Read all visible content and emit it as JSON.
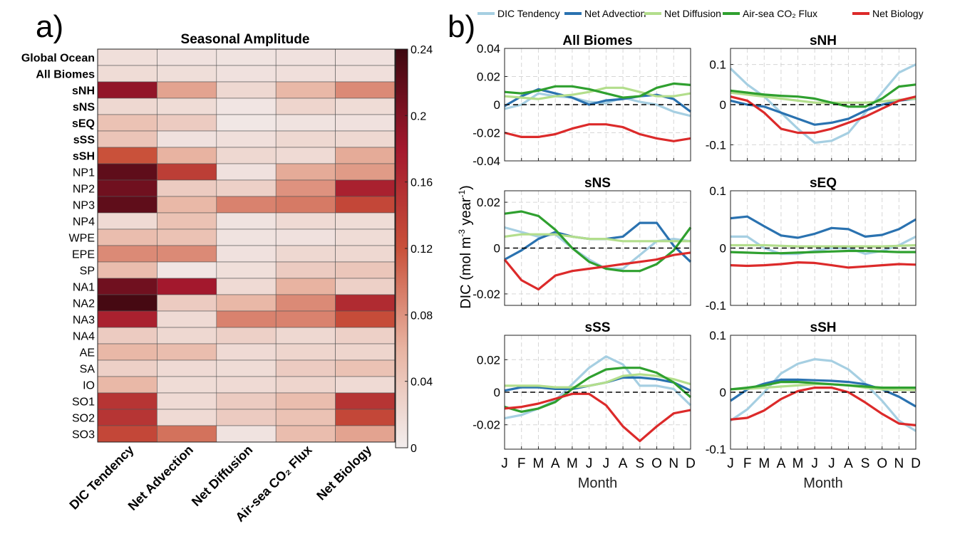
{
  "panel_labels": {
    "a": "a)",
    "b": "b)"
  },
  "heatmap": {
    "title": "Seasonal Amplitude",
    "colorbar_label": "DIC (mol m⁻³ year⁻¹)",
    "colorbar_ticks": [
      "0",
      "0.04",
      "0.08",
      "0.12",
      "0.16",
      "0.2",
      "0.24"
    ],
    "colorbar_range": [
      0,
      0.24
    ],
    "color_stops": [
      "#f2eded",
      "#e8b3a1",
      "#c9513a",
      "#a3182d",
      "#3d0810"
    ]
  },
  "line_panels": {
    "xlabel": "Month",
    "ylabel_left": "DIC (mol m",
    "ylabel_sup": "-3",
    "ylabel_mid": " year",
    "ylabel_sup2": "-1",
    "ylabel_end": ")",
    "legend": [
      {
        "name": "DIC Tendency",
        "color": "#a6cfe2"
      },
      {
        "name": "Net Advection",
        "color": "#2a72b0"
      },
      {
        "name": "Net Diffusion",
        "color": "#b3de8c"
      },
      {
        "name": "Air-sea CO₂ Flux",
        "color": "#2fa02f"
      },
      {
        "name": "Net Biology",
        "color": "#dc2a2a"
      }
    ]
  },
  "chart_data": [
    {
      "type": "heatmap",
      "title": "Seasonal Amplitude",
      "rows": [
        "Global Ocean",
        "All Biomes",
        "sNH",
        "sNS",
        "sEQ",
        "sSS",
        "sSH",
        "NP1",
        "NP2",
        "NP3",
        "NP4",
        "WPE",
        "EPE",
        "SP",
        "NA1",
        "NA2",
        "NA3",
        "NA4",
        "AE",
        "SA",
        "IO",
        "SO1",
        "SO2",
        "SO3"
      ],
      "bold_rows": [
        "Global Ocean",
        "All Biomes",
        "sNH",
        "sNS",
        "sEQ",
        "sSS",
        "sSH"
      ],
      "columns": [
        "DIC Tendency",
        "Net Advection",
        "Net Diffusion",
        "Air-sea CO₂ Flux",
        "Net Biology"
      ],
      "values": [
        [
          0.015,
          0.012,
          0.01,
          0.012,
          0.012
        ],
        [
          0.018,
          0.016,
          0.012,
          0.014,
          0.014
        ],
        [
          0.19,
          0.07,
          0.022,
          0.055,
          0.085
        ],
        [
          0.022,
          0.018,
          0.008,
          0.025,
          0.018
        ],
        [
          0.045,
          0.035,
          0.006,
          0.01,
          0.012
        ],
        [
          0.042,
          0.012,
          0.014,
          0.022,
          0.022
        ],
        [
          0.12,
          0.06,
          0.022,
          0.02,
          0.065
        ],
        [
          0.22,
          0.14,
          0.012,
          0.065,
          0.075
        ],
        [
          0.21,
          0.035,
          0.03,
          0.08,
          0.17
        ],
        [
          0.22,
          0.055,
          0.09,
          0.095,
          0.13
        ],
        [
          0.02,
          0.045,
          0.01,
          0.02,
          0.018
        ],
        [
          0.05,
          0.045,
          0.01,
          0.012,
          0.018
        ],
        [
          0.085,
          0.085,
          0.012,
          0.022,
          0.022
        ],
        [
          0.05,
          0.008,
          0.015,
          0.035,
          0.04
        ],
        [
          0.21,
          0.18,
          0.02,
          0.06,
          0.03
        ],
        [
          0.235,
          0.035,
          0.055,
          0.085,
          0.16
        ],
        [
          0.17,
          0.02,
          0.09,
          0.09,
          0.125
        ],
        [
          0.035,
          0.022,
          0.03,
          0.022,
          0.03
        ],
        [
          0.055,
          0.05,
          0.02,
          0.025,
          0.025
        ],
        [
          0.03,
          0.02,
          0.018,
          0.035,
          0.045
        ],
        [
          0.055,
          0.018,
          0.02,
          0.025,
          0.02
        ],
        [
          0.15,
          0.02,
          0.035,
          0.05,
          0.15
        ],
        [
          0.15,
          0.02,
          0.035,
          0.045,
          0.13
        ],
        [
          0.13,
          0.1,
          0.01,
          0.05,
          0.07
        ]
      ],
      "colorbar_range": [
        0,
        0.24
      ]
    },
    {
      "type": "line",
      "title": "All Biomes",
      "x": [
        "J",
        "F",
        "M",
        "A",
        "M",
        "J",
        "J",
        "A",
        "S",
        "O",
        "N",
        "D"
      ],
      "ylim": [
        -0.04,
        0.04
      ],
      "yticks": [
        "-0.04",
        "-0.02",
        "0",
        "0.02",
        "0.04"
      ],
      "series": [
        {
          "name": "DIC Tendency",
          "values": [
            -0.003,
            0.0,
            0.008,
            0.006,
            0.005,
            0.002,
            0.001,
            0.005,
            0.002,
            0.0,
            -0.005,
            -0.008
          ]
        },
        {
          "name": "Net Advection",
          "values": [
            -0.001,
            0.006,
            0.011,
            0.008,
            0.005,
            0.0,
            0.003,
            0.004,
            0.006,
            0.007,
            0.004,
            -0.005
          ]
        },
        {
          "name": "Net Diffusion",
          "values": [
            0.006,
            0.005,
            0.004,
            0.006,
            0.007,
            0.009,
            0.012,
            0.012,
            0.009,
            0.006,
            0.006,
            0.008
          ]
        },
        {
          "name": "Air-sea CO₂ Flux",
          "values": [
            0.009,
            0.008,
            0.01,
            0.013,
            0.013,
            0.011,
            0.008,
            0.005,
            0.006,
            0.012,
            0.015,
            0.014
          ]
        },
        {
          "name": "Net Biology",
          "values": [
            -0.02,
            -0.023,
            -0.023,
            -0.021,
            -0.017,
            -0.014,
            -0.014,
            -0.016,
            -0.021,
            -0.024,
            -0.026,
            -0.024
          ]
        }
      ]
    },
    {
      "type": "line",
      "title": "sNH",
      "x": [
        "J",
        "F",
        "M",
        "A",
        "M",
        "J",
        "J",
        "A",
        "S",
        "O",
        "N",
        "D"
      ],
      "ylim": [
        -0.14,
        0.14
      ],
      "yticks": [
        "-0.1",
        "0",
        "0.1"
      ],
      "series": [
        {
          "name": "DIC Tendency",
          "values": [
            0.09,
            0.05,
            0.02,
            -0.02,
            -0.06,
            -0.095,
            -0.09,
            -0.07,
            -0.02,
            0.03,
            0.08,
            0.1
          ]
        },
        {
          "name": "Net Advection",
          "values": [
            0.01,
            0.0,
            -0.005,
            -0.02,
            -0.035,
            -0.05,
            -0.045,
            -0.035,
            -0.015,
            0.0,
            0.01,
            0.015
          ]
        },
        {
          "name": "Net Diffusion",
          "values": [
            0.03,
            0.025,
            0.02,
            0.015,
            0.01,
            0.005,
            0.005,
            0.005,
            0.005,
            0.008,
            0.012,
            0.015
          ]
        },
        {
          "name": "Air-sea CO₂ Flux",
          "values": [
            0.035,
            0.03,
            0.025,
            0.022,
            0.02,
            0.015,
            0.005,
            -0.005,
            -0.005,
            0.015,
            0.045,
            0.05
          ]
        },
        {
          "name": "Net Biology",
          "values": [
            0.02,
            0.01,
            -0.02,
            -0.06,
            -0.07,
            -0.07,
            -0.06,
            -0.045,
            -0.03,
            -0.01,
            0.01,
            0.02
          ]
        }
      ]
    },
    {
      "type": "line",
      "title": "sNS",
      "x": [
        "J",
        "F",
        "M",
        "A",
        "M",
        "J",
        "J",
        "A",
        "S",
        "O",
        "N",
        "D"
      ],
      "ylim": [
        -0.025,
        0.025
      ],
      "yticks": [
        "-0.02",
        "0",
        "0.02"
      ],
      "series": [
        {
          "name": "DIC Tendency",
          "values": [
            0.009,
            0.007,
            0.005,
            0.006,
            0.0,
            -0.005,
            -0.009,
            -0.009,
            -0.003,
            0.003,
            0.004,
            0.003
          ]
        },
        {
          "name": "Net Advection",
          "values": [
            -0.005,
            -0.001,
            0.004,
            0.007,
            0.005,
            0.004,
            0.004,
            0.005,
            0.011,
            0.011,
            0.001,
            -0.006
          ]
        },
        {
          "name": "Net Diffusion",
          "values": [
            0.005,
            0.006,
            0.006,
            0.006,
            0.005,
            0.004,
            0.004,
            0.003,
            0.003,
            0.003,
            0.003,
            0.003
          ]
        },
        {
          "name": "Air-sea CO₂ Flux",
          "values": [
            0.015,
            0.016,
            0.014,
            0.008,
            0.0,
            -0.006,
            -0.009,
            -0.01,
            -0.01,
            -0.007,
            -0.001,
            0.009
          ]
        },
        {
          "name": "Net Biology",
          "values": [
            -0.005,
            -0.014,
            -0.018,
            -0.012,
            -0.01,
            -0.009,
            -0.008,
            -0.007,
            -0.006,
            -0.005,
            -0.003,
            -0.002
          ]
        }
      ]
    },
    {
      "type": "line",
      "title": "sEQ",
      "x": [
        "J",
        "F",
        "M",
        "A",
        "M",
        "J",
        "J",
        "A",
        "S",
        "O",
        "N",
        "D"
      ],
      "ylim": [
        -0.1,
        0.1
      ],
      "yticks": [
        "-0.1",
        "0",
        "0.1"
      ],
      "series": [
        {
          "name": "DIC Tendency",
          "values": [
            0.02,
            0.02,
            0.0,
            -0.01,
            -0.01,
            -0.005,
            0.0,
            0.0,
            -0.01,
            -0.005,
            0.005,
            0.02
          ]
        },
        {
          "name": "Net Advection",
          "values": [
            0.052,
            0.055,
            0.038,
            0.022,
            0.018,
            0.025,
            0.035,
            0.033,
            0.02,
            0.023,
            0.033,
            0.05
          ]
        },
        {
          "name": "Net Diffusion",
          "values": [
            0.005,
            0.005,
            0.005,
            0.004,
            0.003,
            0.003,
            0.003,
            0.003,
            0.003,
            0.003,
            0.004,
            0.005
          ]
        },
        {
          "name": "Air-sea CO₂ Flux",
          "values": [
            -0.007,
            -0.008,
            -0.009,
            -0.009,
            -0.008,
            -0.007,
            -0.006,
            -0.005,
            -0.005,
            -0.006,
            -0.007,
            -0.007
          ]
        },
        {
          "name": "Net Biology",
          "values": [
            -0.03,
            -0.031,
            -0.03,
            -0.028,
            -0.025,
            -0.026,
            -0.03,
            -0.034,
            -0.032,
            -0.03,
            -0.028,
            -0.029
          ]
        }
      ]
    },
    {
      "type": "line",
      "title": "sSS",
      "x": [
        "J",
        "F",
        "M",
        "A",
        "M",
        "J",
        "J",
        "A",
        "S",
        "O",
        "N",
        "D"
      ],
      "ylim": [
        -0.035,
        0.035
      ],
      "yticks": [
        "-0.02",
        "0",
        "0.02"
      ],
      "series": [
        {
          "name": "DIC Tendency",
          "values": [
            -0.016,
            -0.014,
            -0.01,
            -0.005,
            0.005,
            0.015,
            0.022,
            0.017,
            0.004,
            0.004,
            0.002,
            -0.008
          ]
        },
        {
          "name": "Net Advection",
          "values": [
            0.001,
            0.003,
            0.003,
            0.002,
            0.002,
            0.004,
            0.006,
            0.009,
            0.009,
            0.008,
            0.006,
            0.001
          ]
        },
        {
          "name": "Net Diffusion",
          "values": [
            0.004,
            0.004,
            0.004,
            0.003,
            0.003,
            0.004,
            0.006,
            0.01,
            0.011,
            0.01,
            0.008,
            0.005
          ]
        },
        {
          "name": "Air-sea CO₂ Flux",
          "values": [
            -0.009,
            -0.012,
            -0.01,
            -0.006,
            0.002,
            0.009,
            0.014,
            0.015,
            0.015,
            0.012,
            0.006,
            -0.003
          ]
        },
        {
          "name": "Net Biology",
          "values": [
            -0.01,
            -0.009,
            -0.007,
            -0.004,
            -0.001,
            -0.001,
            -0.008,
            -0.021,
            -0.03,
            -0.021,
            -0.013,
            -0.011
          ]
        }
      ]
    },
    {
      "type": "line",
      "title": "sSH",
      "x": [
        "J",
        "F",
        "M",
        "A",
        "M",
        "J",
        "J",
        "A",
        "S",
        "O",
        "N",
        "D"
      ],
      "ylim": [
        -0.1,
        0.1
      ],
      "yticks": [
        "-0.1",
        "0",
        "0.1"
      ],
      "series": [
        {
          "name": "DIC Tendency",
          "values": [
            -0.05,
            -0.03,
            0.0,
            0.033,
            0.05,
            0.058,
            0.055,
            0.04,
            0.015,
            -0.015,
            -0.05,
            -0.068
          ]
        },
        {
          "name": "Net Advection",
          "values": [
            -0.015,
            0.005,
            0.015,
            0.022,
            0.022,
            0.021,
            0.02,
            0.018,
            0.014,
            0.005,
            -0.008,
            -0.025
          ]
        },
        {
          "name": "Net Diffusion",
          "values": [
            0.005,
            0.006,
            0.008,
            0.01,
            0.012,
            0.014,
            0.014,
            0.012,
            0.008,
            0.005,
            0.004,
            0.004
          ]
        },
        {
          "name": "Air-sea CO₂ Flux",
          "values": [
            0.005,
            0.008,
            0.012,
            0.018,
            0.018,
            0.016,
            0.014,
            0.012,
            0.01,
            0.008,
            0.008,
            0.008
          ]
        },
        {
          "name": "Net Biology",
          "values": [
            -0.048,
            -0.045,
            -0.032,
            -0.012,
            0.002,
            0.008,
            0.008,
            0.0,
            -0.018,
            -0.038,
            -0.055,
            -0.058
          ]
        }
      ]
    }
  ]
}
